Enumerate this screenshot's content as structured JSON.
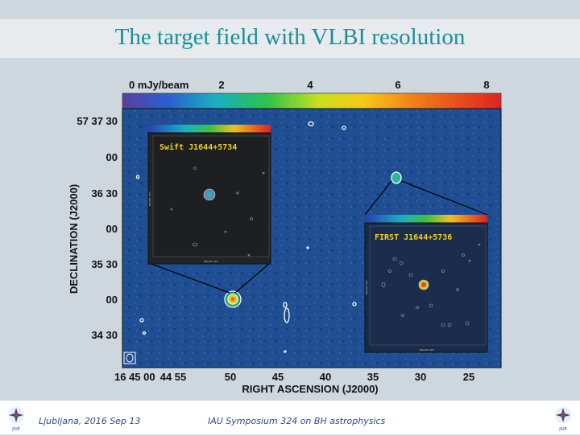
{
  "slide": {
    "title": "The target field with VLBI resolution"
  },
  "figure": {
    "colorbar": {
      "label": "0 mJy/beam",
      "ticks": [
        "2",
        "4",
        "6",
        "8"
      ]
    },
    "dec_axis": {
      "label": "DECLINATION (J2000)",
      "ticks": [
        "57 37 30",
        "00",
        "36 30",
        "00",
        "35 30",
        "00",
        "34 30"
      ]
    },
    "ra_axis": {
      "label": "RIGHT ASCENSION (J2000)",
      "ticks": [
        "16 45 00",
        "44 55",
        "50",
        "45",
        "40",
        "35",
        "30",
        "25"
      ]
    },
    "inset_swift": {
      "label": "Swift J1644+5734",
      "xlabel": "MIIIARC SEC",
      "ylabel": "MIIIARC SEC"
    },
    "inset_first": {
      "label": "FIRST J1644+5736",
      "xlabel": "MIIIARC SEC",
      "ylabel": "MIIIARC SEC"
    },
    "colors": {
      "map_bg": "#1f4f92",
      "inset_bg": "#222426",
      "title": "#1a8f9a"
    }
  },
  "footer": {
    "left": "Ljubljana, 2016 Sep 13",
    "middle": "IAU Symposium 324 on BH astrophysics",
    "logo_text": "JIVE"
  }
}
